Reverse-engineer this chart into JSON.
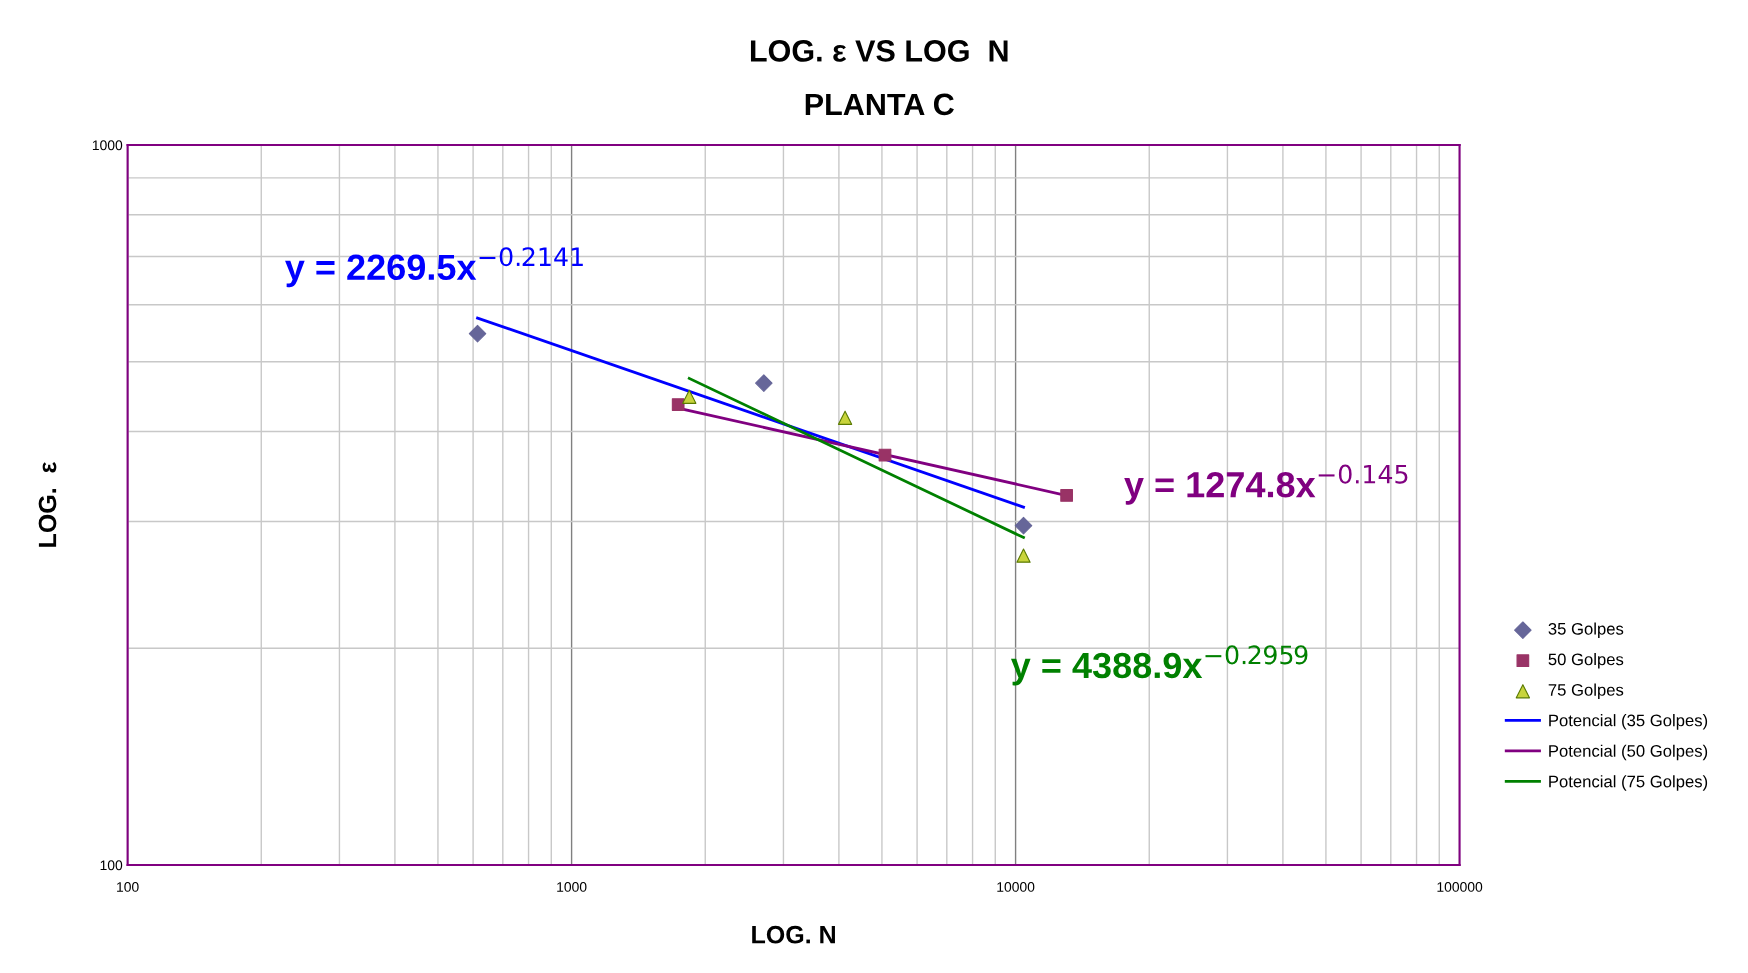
{
  "chart_data": {
    "type": "scatter",
    "title": "LOG. ε VS LOG  N",
    "subtitle": "PLANTA C",
    "xlabel": "LOG. N",
    "ylabel": "LOG.  ε",
    "log": "xy",
    "xlim": [
      100,
      100000
    ],
    "ylim": [
      100,
      1000
    ],
    "xticks": [
      100,
      1000,
      10000,
      100000
    ],
    "yticks": [
      100,
      1000
    ],
    "grid": true,
    "legend": "right",
    "series": [
      {
        "name": "35 Golpes",
        "marker": "diamond",
        "color": "#666699",
        "x": [
          614,
          2710,
          10420
        ],
        "values": [
          547,
          467,
          296
        ]
      },
      {
        "name": "50 Golpes",
        "marker": "square",
        "color": "#993366",
        "x": [
          1738,
          5080,
          13030
        ],
        "values": [
          436,
          371,
          326
        ]
      },
      {
        "name": "75 Golpes",
        "marker": "triangle",
        "color": "#c8d43c",
        "x": [
          1841,
          4130,
          10420
        ],
        "values": [
          447,
          418,
          269
        ]
      },
      {
        "name": "Potencial (35 Golpes)",
        "type": "line",
        "marker": "none",
        "color": "#0000ff",
        "x": [
          614,
          10420
        ],
        "values": [
          575,
          314
        ]
      },
      {
        "name": "Potencial (50 Golpes)",
        "type": "line",
        "marker": "none",
        "color": "#800080",
        "x": [
          1738,
          13030
        ],
        "values": [
          431,
          326
        ]
      },
      {
        "name": "Potencial (75 Golpes)",
        "type": "line",
        "marker": "none",
        "color": "#008000",
        "x": [
          1841,
          10420
        ],
        "values": [
          474,
          285
        ]
      }
    ],
    "annotations": [
      "y = 2269.5x$^{−0.2141}$",
      "y = 1274.8x$^{−0.145}$",
      "y = 4388.9x$^{−0.2959}$"
    ]
  }
}
